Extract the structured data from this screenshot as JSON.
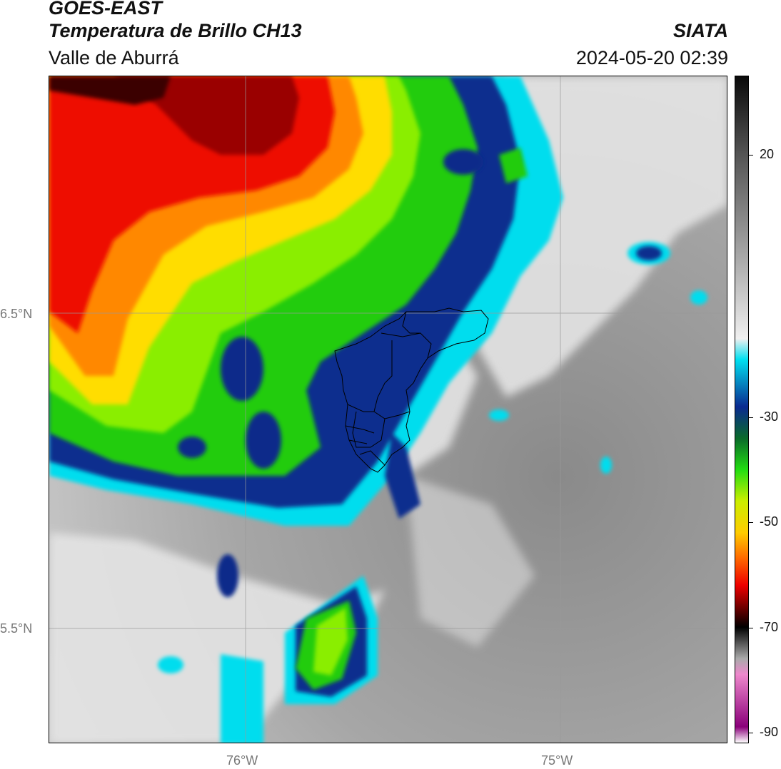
{
  "header": {
    "line1": "GOES-EAST",
    "line2": "Temperatura de Brillo CH13",
    "line3": "Valle de Aburrá",
    "org": "SIATA",
    "timestamp": "2024-05-20 02:39"
  },
  "map": {
    "lat_labels": [
      "6.5°N",
      "5.5°N"
    ],
    "lon_labels": [
      "76°W",
      "75°W"
    ],
    "colors": {
      "warm_gray": "#9a9a9a",
      "light_gray": "#e6e6e6",
      "cyan": "#00e5ee",
      "dark_blue": "#062a8c",
      "green": "#1fd11f",
      "lime": "#8ef000",
      "yellow": "#ffee00",
      "orange": "#ff9900",
      "red": "#ee1100",
      "dark_red": "#8a0000",
      "near_black": "#2a0000"
    }
  },
  "colorbar": {
    "tick_labels": [
      "20",
      "-30",
      "-50",
      "-70",
      "-90"
    ],
    "tick_values": [
      20,
      -30,
      -50,
      -70,
      -90
    ],
    "range": [
      -92,
      35
    ],
    "stops": [
      {
        "v": 35,
        "c": "#0a0a0a"
      },
      {
        "v": 20,
        "c": "#555555"
      },
      {
        "v": 0,
        "c": "#aaaaaa"
      },
      {
        "v": -15,
        "c": "#f0f0f0"
      },
      {
        "v": -19,
        "c": "#00e0f0"
      },
      {
        "v": -28,
        "c": "#0a2a90"
      },
      {
        "v": -34,
        "c": "#0a6a2a"
      },
      {
        "v": -40,
        "c": "#22dd11"
      },
      {
        "v": -46,
        "c": "#ccee00"
      },
      {
        "v": -52,
        "c": "#ffcc00"
      },
      {
        "v": -57,
        "c": "#ff6600"
      },
      {
        "v": -62,
        "c": "#ee0000"
      },
      {
        "v": -68,
        "c": "#3a0000"
      },
      {
        "v": -70,
        "c": "#000000"
      },
      {
        "v": -76,
        "c": "#aaaaaa"
      },
      {
        "v": -79,
        "c": "#ee88cc"
      },
      {
        "v": -89,
        "c": "#8a007a"
      },
      {
        "v": -92,
        "c": "#ffffff"
      }
    ]
  }
}
